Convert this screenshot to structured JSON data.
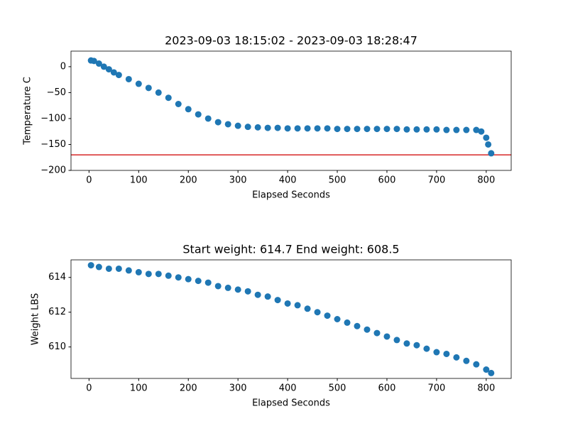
{
  "chart_data": [
    {
      "type": "scatter",
      "title": "2023-09-03 18:15:02 - 2023-09-03 18:28:47",
      "xlabel": "Elapsed Seconds",
      "ylabel": "Temperature C",
      "x": [
        4,
        10,
        20,
        30,
        40,
        50,
        60,
        80,
        100,
        120,
        140,
        160,
        180,
        200,
        220,
        240,
        260,
        280,
        300,
        320,
        340,
        360,
        380,
        400,
        420,
        440,
        460,
        480,
        500,
        520,
        540,
        560,
        580,
        600,
        620,
        640,
        660,
        680,
        700,
        720,
        740,
        760,
        780,
        790,
        800,
        804,
        810
      ],
      "values": [
        12,
        11,
        6,
        0,
        -5,
        -11,
        -16,
        -24,
        -33,
        -41,
        -50,
        -60,
        -72,
        -82,
        -92,
        -100,
        -107,
        -111,
        -114,
        -116,
        -117,
        -118,
        -118,
        -119,
        -119,
        -119,
        -119,
        -119,
        -120,
        -120,
        -120,
        -120,
        -120,
        -120,
        -120,
        -121,
        -121,
        -121,
        -121,
        -122,
        -122,
        -122,
        -122,
        -125,
        -137,
        -150,
        -167
      ],
      "color": "#1f77b4",
      "hlines": [
        {
          "value": -170,
          "color": "#d62728"
        }
      ],
      "xlim": [
        -36.3,
        850.3
      ],
      "xticks": [
        0,
        100,
        200,
        300,
        400,
        500,
        600,
        700,
        800
      ],
      "ylim": [
        -200,
        30
      ],
      "yticks": [
        {
          "value": 0,
          "label": "0"
        },
        {
          "value": -50,
          "label": "−50"
        },
        {
          "value": -100,
          "label": "−100"
        },
        {
          "value": -150,
          "label": "−150"
        },
        {
          "value": -200,
          "label": "−200"
        }
      ]
    },
    {
      "type": "scatter",
      "title": "Start weight: 614.7 End weight: 608.5",
      "xlabel": "Elapsed Seconds",
      "ylabel": "Weight LBS",
      "x": [
        4,
        20,
        40,
        60,
        80,
        100,
        120,
        140,
        160,
        180,
        200,
        220,
        240,
        260,
        280,
        300,
        320,
        340,
        360,
        380,
        400,
        420,
        440,
        460,
        480,
        500,
        520,
        540,
        560,
        580,
        600,
        620,
        640,
        660,
        680,
        700,
        720,
        740,
        760,
        780,
        800,
        810
      ],
      "values": [
        614.7,
        614.6,
        614.5,
        614.5,
        614.4,
        614.3,
        614.2,
        614.2,
        614.1,
        614.0,
        613.9,
        613.8,
        613.7,
        613.5,
        613.4,
        613.3,
        613.2,
        613.0,
        612.9,
        612.7,
        612.5,
        612.4,
        612.2,
        612.0,
        611.8,
        611.6,
        611.4,
        611.2,
        611.0,
        610.8,
        610.6,
        610.4,
        610.2,
        610.1,
        609.9,
        609.7,
        609.6,
        609.4,
        609.2,
        609.0,
        608.7,
        608.5
      ],
      "color": "#1f77b4",
      "xlim": [
        -36.3,
        850.3
      ],
      "xticks": [
        0,
        100,
        200,
        300,
        400,
        500,
        600,
        700,
        800
      ],
      "ylim": [
        608.19,
        615.01
      ],
      "yticks": [
        610,
        612,
        614
      ]
    }
  ]
}
